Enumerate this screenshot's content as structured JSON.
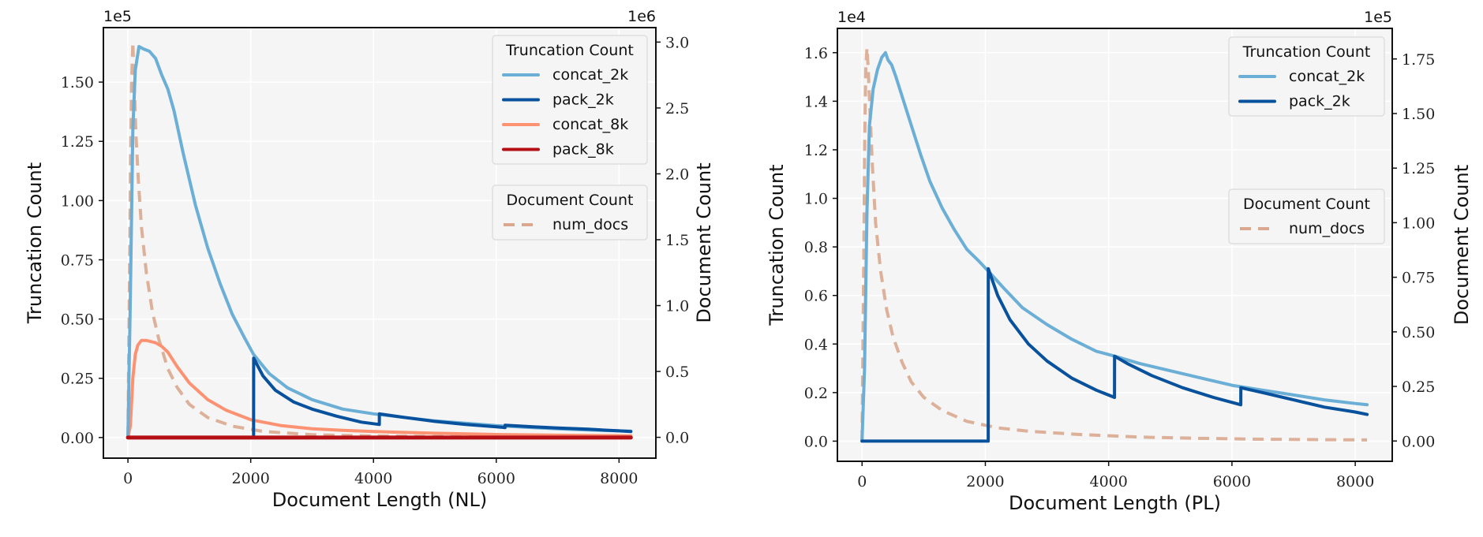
{
  "colors": {
    "concat_2k": "#6baed6",
    "pack_2k": "#08519c",
    "concat_8k": "#fc9272",
    "pack_8k": "#b30f15",
    "num_docs": "#d9a88f",
    "plot_bg": "#f5f5f5",
    "grid": "#ffffff"
  },
  "chart_data": [
    {
      "type": "line",
      "xlabel": "Document Length (NL)",
      "ylabel": "Truncation Count",
      "y2label": "Document Count",
      "y_offset_label": "1e5",
      "y2_offset_label": "1e6",
      "xlim": [
        -400,
        8600
      ],
      "ylim": [
        -0.087,
        1.73
      ],
      "y2lim": [
        -0.158,
        3.11
      ],
      "xticks": [
        "0",
        "2000",
        "4000",
        "6000",
        "8000"
      ],
      "yticks": [
        "0.00",
        "0.25",
        "0.50",
        "0.75",
        "1.00",
        "1.25",
        "1.50"
      ],
      "y2ticks": [
        "0.0",
        "0.5",
        "1.0",
        "1.5",
        "2.0",
        "2.5",
        "3.0"
      ],
      "grid": true,
      "legends": [
        {
          "title": "Truncation Count",
          "placement": "top-right",
          "entries": [
            "concat_2k",
            "pack_2k",
            "concat_8k",
            "pack_8k"
          ]
        },
        {
          "title": "Document Count",
          "placement": "upper-right",
          "entries": [
            "num_docs"
          ]
        }
      ],
      "series": [
        {
          "name": "concat_2k",
          "axis": "left",
          "style": "solid",
          "x": [
            0,
            40,
            80,
            120,
            180,
            250,
            350,
            450,
            550,
            650,
            750,
            900,
            1100,
            1300,
            1500,
            1700,
            1900,
            2048,
            2300,
            2600,
            3000,
            3500,
            4000,
            4500,
            5000,
            5500,
            6000,
            6500,
            7000,
            7500,
            8000,
            8192
          ],
          "y": [
            0,
            0.6,
            1.3,
            1.55,
            1.65,
            1.64,
            1.63,
            1.6,
            1.53,
            1.47,
            1.38,
            1.2,
            0.98,
            0.8,
            0.65,
            0.52,
            0.42,
            0.35,
            0.27,
            0.21,
            0.16,
            0.12,
            0.1,
            0.085,
            0.07,
            0.06,
            0.05,
            0.043,
            0.037,
            0.032,
            0.028,
            0.027
          ]
        },
        {
          "name": "pack_2k",
          "axis": "left",
          "style": "solid",
          "x": [
            0,
            2047,
            2048,
            2200,
            2400,
            2700,
            3000,
            3400,
            3800,
            4095,
            4096,
            4500,
            5000,
            5500,
            6000,
            6143,
            6144,
            6600,
            7000,
            7500,
            8000,
            8192
          ],
          "y": [
            0,
            0,
            0.335,
            0.26,
            0.2,
            0.15,
            0.12,
            0.09,
            0.065,
            0.055,
            0.1,
            0.085,
            0.068,
            0.055,
            0.045,
            0.042,
            0.052,
            0.045,
            0.04,
            0.035,
            0.028,
            0.025
          ]
        },
        {
          "name": "concat_8k",
          "axis": "left",
          "style": "solid",
          "x": [
            0,
            40,
            80,
            120,
            160,
            220,
            300,
            450,
            550,
            650,
            800,
            1000,
            1300,
            1600,
            2000,
            2500,
            3000,
            3500,
            4000,
            5000,
            6000,
            7000,
            8000,
            8192
          ],
          "y": [
            0,
            0.05,
            0.25,
            0.35,
            0.39,
            0.41,
            0.41,
            0.4,
            0.385,
            0.36,
            0.3,
            0.23,
            0.16,
            0.115,
            0.075,
            0.05,
            0.037,
            0.03,
            0.025,
            0.018,
            0.013,
            0.01,
            0.008,
            0.007
          ]
        },
        {
          "name": "pack_8k",
          "axis": "left",
          "style": "solid",
          "x": [
            0,
            8192
          ],
          "y": [
            0,
            0
          ]
        },
        {
          "name": "num_docs",
          "axis": "right",
          "style": "dashed",
          "x": [
            0,
            20,
            40,
            60,
            80,
            100,
            130,
            170,
            220,
            300,
            400,
            500,
            650,
            800,
            1000,
            1300,
            1700,
            2200,
            3000,
            4000,
            5000,
            6000,
            7000,
            8000,
            8192
          ],
          "y": [
            0,
            1.0,
            2.0,
            2.7,
            3.0,
            2.7,
            2.3,
            1.95,
            1.6,
            1.25,
            0.95,
            0.75,
            0.52,
            0.38,
            0.25,
            0.15,
            0.085,
            0.045,
            0.02,
            0.01,
            0.006,
            0.004,
            0.003,
            0.002,
            0.002
          ]
        }
      ]
    },
    {
      "type": "line",
      "xlabel": "Document Length (PL)",
      "ylabel": "Truncation Count",
      "y2label": "Document Count",
      "y_offset_label": "1e4",
      "y2_offset_label": "1e5",
      "xlim": [
        -400,
        8600
      ],
      "ylim": [
        -0.083,
        1.7
      ],
      "y2lim": [
        -0.093,
        1.89
      ],
      "xticks": [
        "0",
        "2000",
        "4000",
        "6000",
        "8000"
      ],
      "yticks": [
        "0.0",
        "0.2",
        "0.4",
        "0.6",
        "0.8",
        "1.0",
        "1.2",
        "1.4",
        "1.6"
      ],
      "y2ticks": [
        "0.00",
        "0.25",
        "0.50",
        "0.75",
        "1.00",
        "1.25",
        "1.50",
        "1.75"
      ],
      "grid": true,
      "legends": [
        {
          "title": "Truncation Count",
          "placement": "top-right",
          "entries": [
            "concat_2k",
            "pack_2k"
          ]
        },
        {
          "title": "Document Count",
          "placement": "upper-right",
          "entries": [
            "num_docs"
          ]
        }
      ],
      "series": [
        {
          "name": "concat_2k",
          "axis": "left",
          "style": "solid",
          "x": [
            0,
            40,
            80,
            120,
            180,
            250,
            320,
            380,
            420,
            480,
            550,
            650,
            800,
            950,
            1100,
            1300,
            1500,
            1700,
            1900,
            2048,
            2300,
            2600,
            3000,
            3400,
            3800,
            4100,
            4500,
            5000,
            5500,
            6000,
            6500,
            7000,
            7500,
            8000,
            8192
          ],
          "y": [
            0,
            0.3,
            0.95,
            1.3,
            1.45,
            1.53,
            1.58,
            1.6,
            1.57,
            1.55,
            1.5,
            1.42,
            1.3,
            1.18,
            1.07,
            0.96,
            0.87,
            0.79,
            0.74,
            0.7,
            0.63,
            0.55,
            0.48,
            0.42,
            0.37,
            0.35,
            0.32,
            0.29,
            0.26,
            0.23,
            0.21,
            0.19,
            0.17,
            0.155,
            0.15
          ]
        },
        {
          "name": "pack_2k",
          "axis": "left",
          "style": "solid",
          "x": [
            0,
            2047,
            2048,
            2200,
            2400,
            2700,
            3000,
            3400,
            3800,
            4095,
            4096,
            4300,
            4700,
            5200,
            5700,
            6143,
            6144,
            6500,
            7000,
            7500,
            8000,
            8192
          ],
          "y": [
            0,
            0,
            0.71,
            0.6,
            0.5,
            0.4,
            0.33,
            0.26,
            0.21,
            0.18,
            0.35,
            0.32,
            0.27,
            0.22,
            0.18,
            0.15,
            0.22,
            0.2,
            0.17,
            0.14,
            0.12,
            0.11
          ]
        },
        {
          "name": "num_docs",
          "axis": "right",
          "style": "dashed",
          "x": [
            0,
            20,
            40,
            60,
            80,
            100,
            130,
            170,
            220,
            300,
            400,
            500,
            650,
            800,
            1000,
            1300,
            1700,
            2200,
            2700,
            3500,
            4500,
            5500,
            6500,
            7500,
            8192
          ],
          "y": [
            0,
            0.6,
            1.3,
            1.7,
            1.8,
            1.7,
            1.5,
            1.25,
            1.0,
            0.78,
            0.6,
            0.48,
            0.36,
            0.27,
            0.2,
            0.14,
            0.09,
            0.06,
            0.045,
            0.03,
            0.018,
            0.012,
            0.008,
            0.006,
            0.005
          ]
        }
      ]
    }
  ]
}
